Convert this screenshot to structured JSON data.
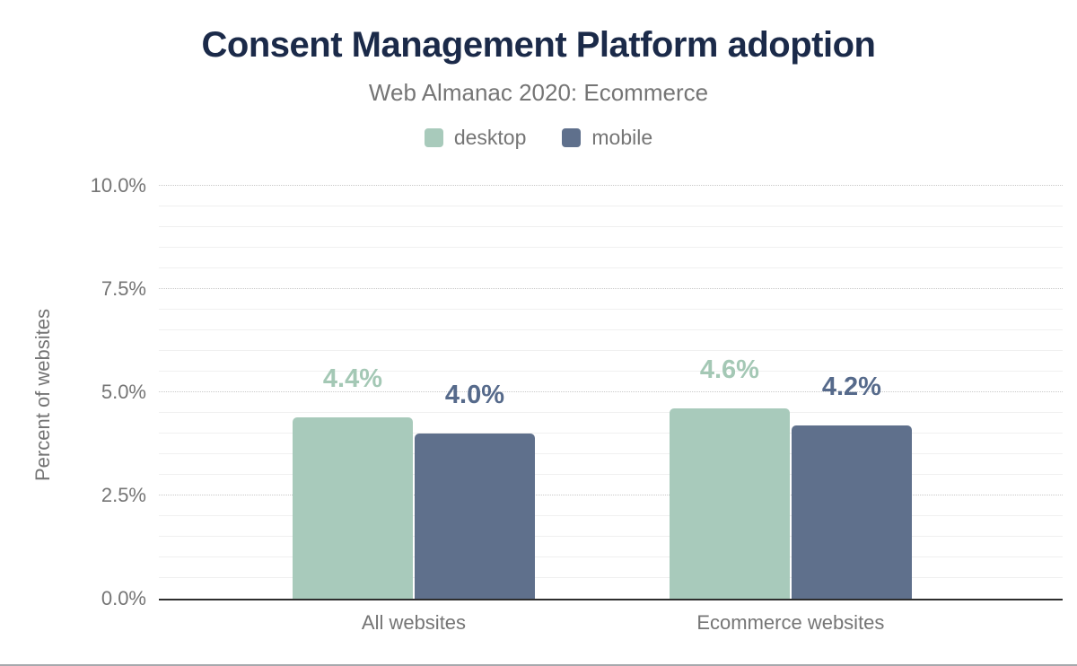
{
  "header": {
    "title": "Consent Management Platform adoption",
    "subtitle": "Web Almanac 2020: Ecommerce"
  },
  "legend": [
    {
      "label": "desktop",
      "color": "#a8cabb"
    },
    {
      "label": "mobile",
      "color": "#5f708c"
    }
  ],
  "colors": {
    "title_navy": "#1b2a49",
    "muted_text": "#757575",
    "desktop_green": "#a8cabb",
    "mobile_slate": "#5f708c",
    "desktop_label": "#a4c8b5",
    "mobile_label": "#566a8b",
    "axis_line": "#2e2e2e",
    "grid_major": "#c9c9c9",
    "grid_minor": "#f0f0f0",
    "bottom_border": "#a6a9ad"
  },
  "chart_data": {
    "type": "bar",
    "title": "Consent Management Platform adoption",
    "subtitle": "Web Almanac 2020: Ecommerce",
    "categories": [
      "All websites",
      "Ecommerce websites"
    ],
    "series": [
      {
        "name": "desktop",
        "color": "#a8cabb",
        "label_color": "#a4c8b5",
        "values": [
          4.4,
          4.6
        ],
        "labels": [
          "4.4%",
          "4.6%"
        ]
      },
      {
        "name": "mobile",
        "color": "#5f708c",
        "label_color": "#566a8b",
        "values": [
          4.0,
          4.2
        ],
        "labels": [
          "4.0%",
          "4.2%"
        ]
      }
    ],
    "xlabel": "",
    "ylabel": "Percent of websites",
    "ylim": [
      0,
      10
    ],
    "yticks": [
      {
        "value": 0,
        "label": "0.0%"
      },
      {
        "value": 2.5,
        "label": "2.5%"
      },
      {
        "value": 5,
        "label": "5.0%"
      },
      {
        "value": 7.5,
        "label": "7.5%"
      },
      {
        "value": 10,
        "label": "10.0%"
      }
    ],
    "minor_grid_step": 0.5,
    "grid": true,
    "legend_position": "top"
  }
}
